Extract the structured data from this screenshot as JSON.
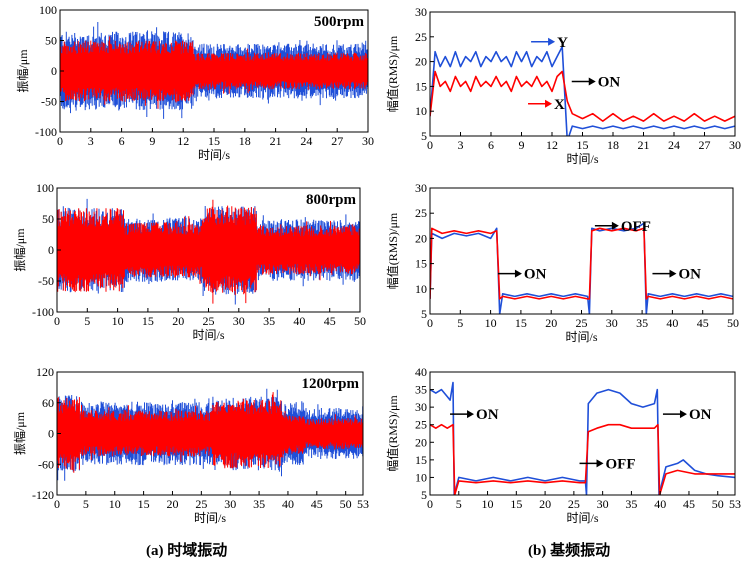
{
  "colors": {
    "x": "#ff0000",
    "y": "#1f4fd8",
    "axis": "#000000"
  },
  "captions": {
    "a": "(a) 时域振动",
    "b": "(b) 基频振动"
  },
  "chart_data": [
    {
      "id": "a1",
      "type": "line",
      "title": "500rpm",
      "xlabel": "时间/s",
      "ylabel": "振幅/μm",
      "xlim": [
        0,
        30
      ],
      "ylim": [
        -100,
        100
      ],
      "xticks": [
        0,
        3,
        6,
        9,
        12,
        15,
        18,
        21,
        24,
        27,
        30
      ],
      "yticks": [
        100,
        50,
        0,
        -50,
        -100
      ],
      "segments": [
        {
          "t0": 0,
          "t1": 13,
          "red": 50,
          "blue": 65
        },
        {
          "t0": 13,
          "t1": 30,
          "red": 30,
          "blue": 45
        }
      ]
    },
    {
      "id": "a2",
      "type": "line",
      "title": "800rpm",
      "xlabel": "时间/s",
      "ylabel": "振幅/μm",
      "xlim": [
        0,
        50
      ],
      "ylim": [
        -100,
        100
      ],
      "xticks": [
        0,
        5,
        10,
        15,
        20,
        25,
        30,
        35,
        40,
        45,
        50
      ],
      "yticks": [
        100,
        50,
        0,
        -50,
        -100
      ],
      "segments": [
        {
          "t0": 0,
          "t1": 11,
          "red": 68,
          "blue": 68
        },
        {
          "t0": 11,
          "t1": 24,
          "red": 45,
          "blue": 52
        },
        {
          "t0": 24,
          "t1": 33,
          "red": 72,
          "blue": 72
        },
        {
          "t0": 33,
          "t1": 50,
          "red": 40,
          "blue": 50
        }
      ]
    },
    {
      "id": "a3",
      "type": "line",
      "title": "1200rpm",
      "xlabel": "时间/s",
      "ylabel": "振幅/μm",
      "xlim": [
        0,
        53
      ],
      "ylim": [
        -120,
        120
      ],
      "xticks": [
        0,
        5,
        10,
        15,
        20,
        25,
        30,
        35,
        40,
        45,
        50,
        53
      ],
      "yticks": [
        120,
        60,
        0,
        -60,
        -120
      ],
      "segments": [
        {
          "t0": 0,
          "t1": 4,
          "red": 72,
          "blue": 75
        },
        {
          "t0": 4,
          "t1": 27,
          "red": 45,
          "blue": 62
        },
        {
          "t0": 27,
          "t1": 39,
          "red": 68,
          "blue": 72
        },
        {
          "t0": 39,
          "t1": 43,
          "red": 40,
          "blue": 62
        },
        {
          "t0": 43,
          "t1": 53,
          "red": 30,
          "blue": 50
        }
      ]
    },
    {
      "id": "b1",
      "type": "line",
      "xlabel": "时间/s",
      "ylabel": "幅值(RMS)/μm",
      "xlim": [
        0,
        30
      ],
      "ylim": [
        5,
        30
      ],
      "xticks": [
        0,
        3,
        6,
        9,
        12,
        15,
        18,
        21,
        24,
        27,
        30
      ],
      "yticks": [
        30,
        25,
        20,
        15,
        10,
        5
      ],
      "series": [
        {
          "name": "Y",
          "points": [
            [
              0,
              9
            ],
            [
              0.5,
              22
            ],
            [
              1,
              19
            ],
            [
              1.5,
              21
            ],
            [
              2,
              19
            ],
            [
              2.5,
              22
            ],
            [
              3,
              19
            ],
            [
              3.5,
              21
            ],
            [
              4,
              20
            ],
            [
              4.5,
              22
            ],
            [
              5,
              19
            ],
            [
              5.5,
              21
            ],
            [
              6,
              20
            ],
            [
              6.5,
              22
            ],
            [
              7,
              20
            ],
            [
              7.5,
              21
            ],
            [
              8,
              19
            ],
            [
              8.5,
              22
            ],
            [
              9,
              20
            ],
            [
              9.5,
              22
            ],
            [
              10,
              19
            ],
            [
              10.5,
              21
            ],
            [
              11,
              20
            ],
            [
              11.5,
              22
            ],
            [
              12,
              19
            ],
            [
              12.5,
              21
            ],
            [
              13,
              23
            ],
            [
              13.5,
              4
            ],
            [
              14,
              7
            ],
            [
              15,
              6.5
            ],
            [
              16,
              7
            ],
            [
              17,
              6.5
            ],
            [
              18,
              7
            ],
            [
              19,
              6.5
            ],
            [
              20,
              7
            ],
            [
              21,
              6.5
            ],
            [
              22,
              7
            ],
            [
              23,
              6.5
            ],
            [
              24,
              7
            ],
            [
              25,
              6.5
            ],
            [
              26,
              7
            ],
            [
              27,
              6.5
            ],
            [
              28,
              7
            ],
            [
              29,
              6.5
            ],
            [
              30,
              7
            ]
          ]
        },
        {
          "name": "X",
          "points": [
            [
              0,
              9
            ],
            [
              0.5,
              18
            ],
            [
              1,
              15
            ],
            [
              1.5,
              16
            ],
            [
              2,
              14
            ],
            [
              2.5,
              17
            ],
            [
              3,
              15
            ],
            [
              3.5,
              16
            ],
            [
              4,
              14
            ],
            [
              4.5,
              17
            ],
            [
              5,
              15
            ],
            [
              5.5,
              16
            ],
            [
              6,
              15
            ],
            [
              6.5,
              17
            ],
            [
              7,
              15
            ],
            [
              7.5,
              16
            ],
            [
              8,
              14
            ],
            [
              8.5,
              17
            ],
            [
              9,
              15
            ],
            [
              9.5,
              16
            ],
            [
              10,
              15
            ],
            [
              10.5,
              17
            ],
            [
              11,
              15
            ],
            [
              11.5,
              16
            ],
            [
              12,
              14
            ],
            [
              12.5,
              17
            ],
            [
              13,
              18
            ],
            [
              13.5,
              12
            ],
            [
              14,
              9.5
            ],
            [
              15,
              8.5
            ],
            [
              16,
              9.5
            ],
            [
              17,
              8
            ],
            [
              18,
              9.5
            ],
            [
              19,
              8
            ],
            [
              20,
              9
            ],
            [
              21,
              8
            ],
            [
              22,
              9.5
            ],
            [
              23,
              8
            ],
            [
              24,
              9
            ],
            [
              25,
              8
            ],
            [
              26,
              9.5
            ],
            [
              27,
              8
            ],
            [
              28,
              9
            ],
            [
              29,
              8
            ],
            [
              30,
              9
            ]
          ]
        }
      ],
      "annotations": [
        {
          "text": "Y",
          "x": 12.5,
          "y": 24,
          "color": "#1f4fd8"
        },
        {
          "text": "X",
          "x": 12.2,
          "y": 11.5,
          "color": "#ff0000"
        },
        {
          "text": "ON",
          "x": 16.5,
          "y": 16
        }
      ]
    },
    {
      "id": "b2",
      "type": "line",
      "xlabel": "时间/s",
      "ylabel": "幅值(RMS)/μm",
      "xlim": [
        0,
        50
      ],
      "ylim": [
        5,
        30
      ],
      "xticks": [
        0,
        5,
        10,
        15,
        20,
        25,
        30,
        35,
        40,
        45,
        50
      ],
      "yticks": [
        30,
        25,
        20,
        15,
        10,
        5
      ],
      "series": [
        {
          "name": "Y",
          "points": [
            [
              0,
              8
            ],
            [
              0.3,
              21
            ],
            [
              2,
              20
            ],
            [
              4,
              21
            ],
            [
              6,
              20.5
            ],
            [
              8,
              21
            ],
            [
              10,
              20
            ],
            [
              11,
              22
            ],
            [
              11.5,
              5
            ],
            [
              12,
              9
            ],
            [
              14,
              8.5
            ],
            [
              16,
              9
            ],
            [
              18,
              8.5
            ],
            [
              20,
              9
            ],
            [
              22,
              8.5
            ],
            [
              24,
              9
            ],
            [
              26,
              8.5
            ],
            [
              26.3,
              5
            ],
            [
              26.7,
              22
            ],
            [
              28,
              21.5
            ],
            [
              30,
              22
            ],
            [
              32,
              21.5
            ],
            [
              34,
              22
            ],
            [
              35.3,
              23
            ],
            [
              35.7,
              5
            ],
            [
              36,
              9
            ],
            [
              38,
              8.5
            ],
            [
              40,
              9
            ],
            [
              42,
              8.5
            ],
            [
              44,
              9
            ],
            [
              46,
              8.5
            ],
            [
              48,
              9
            ],
            [
              50,
              8.5
            ]
          ]
        },
        {
          "name": "X",
          "points": [
            [
              0,
              8
            ],
            [
              0.3,
              22
            ],
            [
              2,
              21
            ],
            [
              4,
              21.5
            ],
            [
              6,
              21
            ],
            [
              8,
              21.5
            ],
            [
              10,
              21
            ],
            [
              11,
              21.5
            ],
            [
              11.5,
              8
            ],
            [
              12,
              8.5
            ],
            [
              14,
              8
            ],
            [
              16,
              8.5
            ],
            [
              18,
              8
            ],
            [
              20,
              8.5
            ],
            [
              22,
              8
            ],
            [
              24,
              8.5
            ],
            [
              26,
              8
            ],
            [
              26.3,
              8
            ],
            [
              26.7,
              21.5
            ],
            [
              28,
              22
            ],
            [
              30,
              21.5
            ],
            [
              32,
              22
            ],
            [
              34,
              21.5
            ],
            [
              35.3,
              22
            ],
            [
              35.7,
              8
            ],
            [
              36,
              8.5
            ],
            [
              38,
              8
            ],
            [
              40,
              8.5
            ],
            [
              42,
              8
            ],
            [
              44,
              8.5
            ],
            [
              46,
              8
            ],
            [
              48,
              8.5
            ],
            [
              50,
              8
            ]
          ]
        }
      ],
      "annotations": [
        {
          "text": "ON",
          "x": 15.5,
          "y": 13
        },
        {
          "text": "OFF",
          "x": 31.5,
          "y": 22.5
        },
        {
          "text": "ON",
          "x": 41,
          "y": 13
        }
      ]
    },
    {
      "id": "b3",
      "type": "line",
      "xlabel": "时间/s",
      "ylabel": "幅值(RMS)/μm",
      "xlim": [
        0,
        53
      ],
      "ylim": [
        5,
        40
      ],
      "xticks": [
        0,
        5,
        10,
        15,
        20,
        25,
        30,
        35,
        40,
        45,
        50,
        53
      ],
      "yticks": [
        40,
        35,
        30,
        25,
        20,
        15,
        10,
        5
      ],
      "series": [
        {
          "name": "Y",
          "points": [
            [
              0,
              35
            ],
            [
              1,
              34
            ],
            [
              2,
              35
            ],
            [
              3,
              33
            ],
            [
              3.5,
              32
            ],
            [
              4,
              37
            ],
            [
              4.2,
              5
            ],
            [
              5,
              10
            ],
            [
              8,
              9
            ],
            [
              11,
              10
            ],
            [
              14,
              9
            ],
            [
              17,
              10
            ],
            [
              20,
              9
            ],
            [
              23,
              10
            ],
            [
              26,
              9
            ],
            [
              27,
              9
            ],
            [
              27.2,
              5
            ],
            [
              27.5,
              31
            ],
            [
              29,
              34
            ],
            [
              31,
              35
            ],
            [
              33,
              34
            ],
            [
              35,
              31
            ],
            [
              37,
              30
            ],
            [
              39,
              31
            ],
            [
              39.5,
              35
            ],
            [
              39.8,
              5
            ],
            [
              41,
              13
            ],
            [
              43,
              14
            ],
            [
              44,
              15
            ],
            [
              46,
              12
            ],
            [
              48,
              11
            ],
            [
              50,
              10.5
            ],
            [
              53,
              10
            ]
          ]
        },
        {
          "name": "X",
          "points": [
            [
              0,
              25
            ],
            [
              1,
              24
            ],
            [
              2,
              25
            ],
            [
              3,
              24
            ],
            [
              4,
              25
            ],
            [
              4.3,
              5
            ],
            [
              5,
              9
            ],
            [
              8,
              8.5
            ],
            [
              11,
              9
            ],
            [
              14,
              8.5
            ],
            [
              17,
              9
            ],
            [
              20,
              8.5
            ],
            [
              23,
              9
            ],
            [
              26,
              8.5
            ],
            [
              27,
              8.5
            ],
            [
              27.5,
              23
            ],
            [
              29,
              24
            ],
            [
              31,
              25
            ],
            [
              33,
              25
            ],
            [
              35,
              24
            ],
            [
              37,
              24
            ],
            [
              39,
              24
            ],
            [
              39.6,
              25
            ],
            [
              39.9,
              5
            ],
            [
              41,
              11
            ],
            [
              43,
              12
            ],
            [
              46,
              11
            ],
            [
              48,
              11
            ],
            [
              50,
              11
            ],
            [
              53,
              11
            ]
          ]
        }
      ],
      "annotations": [
        {
          "text": "ON",
          "x": 8,
          "y": 28
        },
        {
          "text": "OFF",
          "x": 30.5,
          "y": 14
        },
        {
          "text": "ON",
          "x": 45,
          "y": 28
        }
      ]
    }
  ]
}
